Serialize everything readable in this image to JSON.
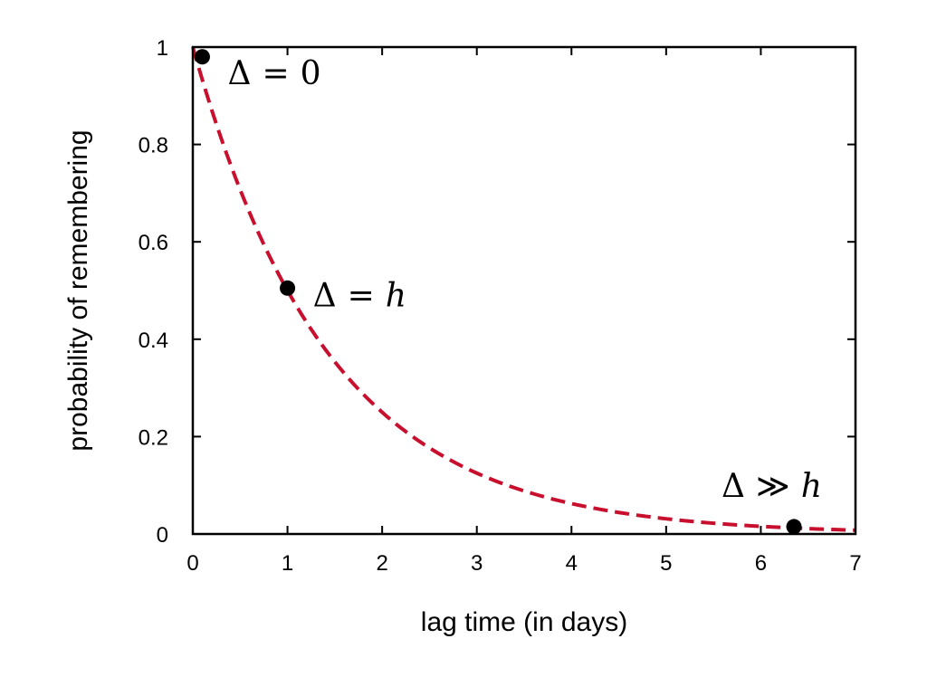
{
  "chart_data": {
    "type": "line",
    "xlabel": "lag time (in days)",
    "ylabel": "probability of remembering",
    "xlim": [
      0,
      7
    ],
    "ylim": [
      0,
      1
    ],
    "x_ticks": [
      "0",
      "1",
      "2",
      "3",
      "4",
      "5",
      "6",
      "7"
    ],
    "y_ticks": [
      "0",
      "0.2",
      "0.4",
      "0.6",
      "0.8",
      "1"
    ],
    "grid": false,
    "curve": {
      "style": "dashed",
      "color": "#c8102e",
      "function": "exponential decay, half-life h = 1 day",
      "x": [
        0,
        0.25,
        0.5,
        0.75,
        1,
        1.5,
        2,
        2.5,
        3,
        3.5,
        4,
        4.5,
        5,
        5.5,
        6,
        6.5,
        7
      ],
      "y": [
        1.0,
        0.84,
        0.707,
        0.595,
        0.5,
        0.354,
        0.25,
        0.177,
        0.125,
        0.088,
        0.0625,
        0.044,
        0.031,
        0.022,
        0.0156,
        0.011,
        0.0078
      ]
    },
    "points": [
      {
        "x": 0.1,
        "y": 0.98,
        "label": "Δ = 0",
        "label_lhs": "Δ",
        "label_op": "=",
        "label_rhs": "0",
        "rhs_italic": false
      },
      {
        "x": 1.0,
        "y": 0.505,
        "label": "Δ = h",
        "label_lhs": "Δ",
        "label_op": "=",
        "label_rhs": "h",
        "rhs_italic": true
      },
      {
        "x": 6.35,
        "y": 0.015,
        "label": "Δ ≫ h",
        "label_lhs": "Δ",
        "label_op": "≫",
        "label_rhs": "h",
        "rhs_italic": true
      }
    ],
    "point_color": "#000000"
  }
}
